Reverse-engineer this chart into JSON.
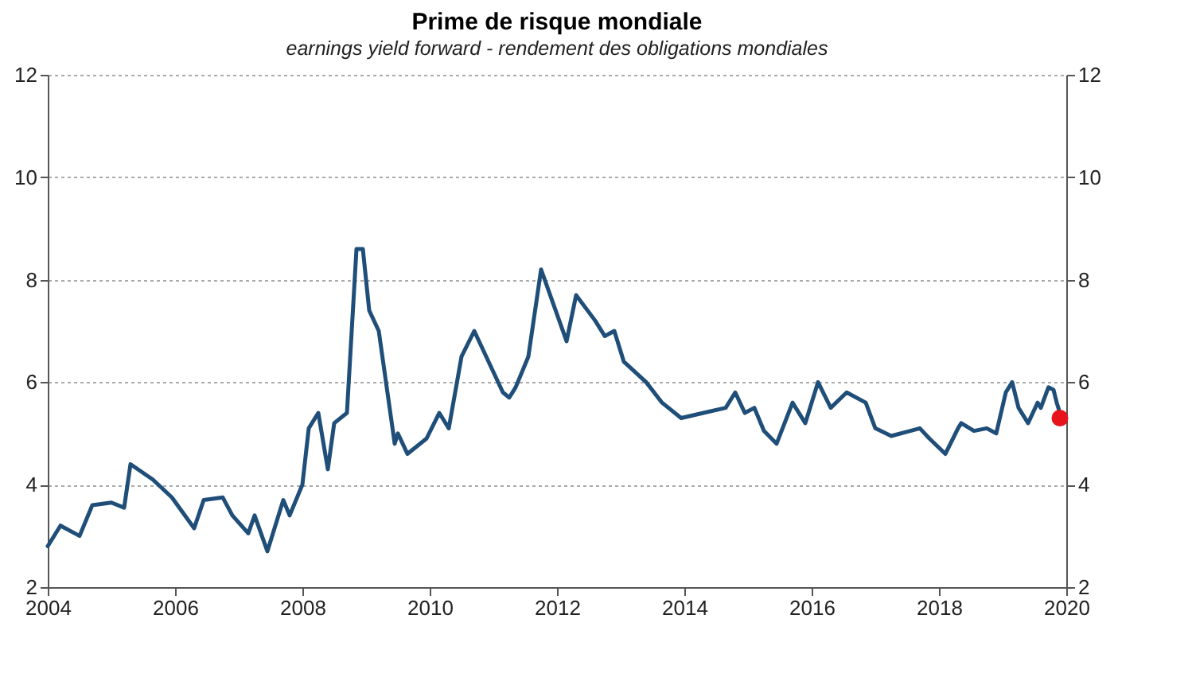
{
  "chart_data": {
    "type": "line",
    "title": "Prime de risque mondiale",
    "subtitle": "earnings yield forward - rendement des obligations mondiales",
    "xlim": [
      2004,
      2020
    ],
    "xticks": [
      2004,
      2006,
      2008,
      2010,
      2012,
      2014,
      2016,
      2018,
      2020
    ],
    "ylim": [
      2,
      12
    ],
    "yticks": [
      2,
      4,
      6,
      8,
      10,
      12
    ],
    "y2lim": [
      2,
      12
    ],
    "y2ticks": [
      2,
      4,
      6,
      8,
      10,
      12
    ],
    "grid": "y",
    "series": [
      {
        "color": "#1f4e79",
        "x": [
          2004.0,
          2004.2,
          2004.5,
          2004.7,
          2005.0,
          2005.2,
          2005.3,
          2005.65,
          2005.95,
          2006.3,
          2006.45,
          2006.75,
          2006.9,
          2007.15,
          2007.25,
          2007.45,
          2007.7,
          2007.8,
          2008.0,
          2008.1,
          2008.25,
          2008.4,
          2008.5,
          2008.7,
          2008.85,
          2008.95,
          2009.05,
          2009.2,
          2009.45,
          2009.5,
          2009.65,
          2009.95,
          2010.15,
          2010.3,
          2010.5,
          2010.7,
          2010.85,
          2011.15,
          2011.25,
          2011.35,
          2011.55,
          2011.75,
          2011.95,
          2012.15,
          2012.3,
          2012.6,
          2012.75,
          2012.9,
          2013.05,
          2013.4,
          2013.65,
          2013.95,
          2014.3,
          2014.65,
          2014.8,
          2014.95,
          2015.1,
          2015.25,
          2015.45,
          2015.7,
          2015.9,
          2016.1,
          2016.3,
          2016.55,
          2016.85,
          2017.0,
          2017.25,
          2017.55,
          2017.7,
          2017.85,
          2018.1,
          2018.3,
          2018.35,
          2018.55,
          2018.75,
          2018.9,
          2019.05,
          2019.15,
          2019.25,
          2019.4,
          2019.55,
          2019.6,
          2019.72,
          2019.8,
          2019.85,
          2019.9
        ],
        "values": [
          2.8,
          3.2,
          3.0,
          3.6,
          3.65,
          3.55,
          4.4,
          4.1,
          3.75,
          3.15,
          3.7,
          3.75,
          3.4,
          3.05,
          3.4,
          2.7,
          3.7,
          3.4,
          4.0,
          5.1,
          5.4,
          4.3,
          5.2,
          5.4,
          8.6,
          8.6,
          7.4,
          7.0,
          4.8,
          5.0,
          4.6,
          4.9,
          5.4,
          5.1,
          6.5,
          7.0,
          6.6,
          5.8,
          5.7,
          5.9,
          6.5,
          8.2,
          7.5,
          6.8,
          7.7,
          7.2,
          6.9,
          7.0,
          6.4,
          6.0,
          5.6,
          5.3,
          5.4,
          5.5,
          5.8,
          5.4,
          5.5,
          5.05,
          4.8,
          5.6,
          5.2,
          6.0,
          5.5,
          5.8,
          5.6,
          5.1,
          4.95,
          5.05,
          5.1,
          4.9,
          4.6,
          5.1,
          5.2,
          5.05,
          5.1,
          5.0,
          5.8,
          6.0,
          5.5,
          5.2,
          5.6,
          5.5,
          5.9,
          5.85,
          5.6,
          5.4
        ]
      },
      {
        "type": "scatter",
        "color": "#e8141b",
        "x": [
          2019.9
        ],
        "values": [
          5.3
        ]
      }
    ]
  }
}
